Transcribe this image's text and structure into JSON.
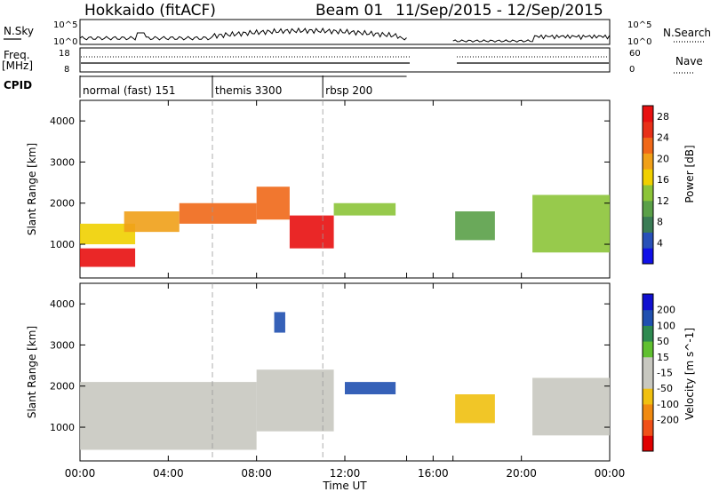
{
  "header": {
    "station": "Hokkaido (fitACF)",
    "beam": "Beam 01",
    "date_range": "11/Sep/2015 - 12/Sep/2015"
  },
  "noise_panel": {
    "left_label": "N.Sky",
    "right_label": "N.Search",
    "left_ticks": [
      "10^5",
      "10^0"
    ],
    "right_ticks": [
      "10^5",
      "10^0"
    ]
  },
  "freq_panel": {
    "left_label_1": "Freq.",
    "left_label_2": "[MHz]",
    "right_label": "Nave",
    "left_ticks": [
      "18",
      "8"
    ],
    "right_ticks": [
      "60",
      "0"
    ]
  },
  "cpid_panel": {
    "label": "CPID",
    "modes": [
      {
        "name": "normal (fast) 151",
        "start_h": 0
      },
      {
        "name": "themis 3300",
        "start_h": 6
      },
      {
        "name": "rbsp 200",
        "start_h": 11
      }
    ]
  },
  "colors": {
    "power": [
      "#1010e8",
      "#2850b8",
      "#3a7c55",
      "#5aa048",
      "#8cc438",
      "#f0d000",
      "#f0a018",
      "#f06818",
      "#e83018",
      "#e81010"
    ],
    "velocity": [
      "#e00000",
      "#f05018",
      "#f08a10",
      "#f0c010",
      "#c8c8c0",
      "#c8c8c0",
      "#60c030",
      "#2e8a50",
      "#2050b0",
      "#1010d0"
    ]
  },
  "chart_data": [
    {
      "type": "heatmap",
      "panel": "power",
      "xlabel": "",
      "ylabel": "Slant Range [km]",
      "xlim": [
        "00:00",
        "00:00"
      ],
      "ylim": [
        180,
        4500
      ],
      "y_ticks": [
        "1000",
        "2000",
        "3000",
        "4000"
      ],
      "x_ticks": [
        "00:00",
        "04:00",
        "08:00",
        "12:00",
        "16:00",
        "20:00",
        "00:00"
      ],
      "colorbar": {
        "label": "Power [dB]",
        "ticks": [
          "4",
          "8",
          "12",
          "16",
          "20",
          "24",
          "28"
        ],
        "range": [
          0,
          30
        ]
      },
      "data_gap_hours": [
        14.8,
        16.9
      ],
      "echo_regions": [
        {
          "t_start": 0.0,
          "t_end": 2.5,
          "range_km": [
            450,
            900
          ],
          "value": 27
        },
        {
          "t_start": 0.0,
          "t_end": 2.5,
          "range_km": [
            1000,
            1500
          ],
          "value": 15
        },
        {
          "t_start": 2.0,
          "t_end": 4.5,
          "range_km": [
            1300,
            1800
          ],
          "value": 19
        },
        {
          "t_start": 4.5,
          "t_end": 8.0,
          "range_km": [
            1500,
            2000
          ],
          "value": 23
        },
        {
          "t_start": 8.0,
          "t_end": 9.5,
          "range_km": [
            1600,
            2400
          ],
          "value": 21
        },
        {
          "t_start": 9.5,
          "t_end": 11.5,
          "range_km": [
            900,
            1700
          ],
          "value": 27
        },
        {
          "t_start": 11.5,
          "t_end": 14.3,
          "range_km": [
            1700,
            2000
          ],
          "value": 14
        },
        {
          "t_start": 17.0,
          "t_end": 18.8,
          "range_km": [
            1100,
            1800
          ],
          "value": 10
        },
        {
          "t_start": 20.5,
          "t_end": 24.0,
          "range_km": [
            800,
            2200
          ],
          "value": 12
        }
      ]
    },
    {
      "type": "heatmap",
      "panel": "velocity",
      "xlabel": "Time UT",
      "ylabel": "Slant Range [km]",
      "xlim": [
        "00:00",
        "00:00"
      ],
      "ylim": [
        180,
        4500
      ],
      "y_ticks": [
        "1000",
        "2000",
        "3000",
        "4000"
      ],
      "x_ticks": [
        "00:00",
        "04:00",
        "08:00",
        "12:00",
        "16:00",
        "20:00",
        "00:00"
      ],
      "colorbar": {
        "label": "Velocity [m s^-1]",
        "ticks": [
          "200",
          "100",
          "50",
          "15",
          "-15",
          "-50",
          "-100",
          "-200"
        ],
        "range": [
          -250,
          250
        ]
      },
      "data_gap_hours": [
        14.8,
        16.9
      ],
      "echo_regions": [
        {
          "t_start": 0.0,
          "t_end": 8.0,
          "range_km": [
            450,
            2100
          ],
          "value": 0
        },
        {
          "t_start": 8.0,
          "t_end": 11.5,
          "range_km": [
            900,
            2400
          ],
          "value": 30
        },
        {
          "t_start": 8.8,
          "t_end": 9.3,
          "range_km": [
            3300,
            3800
          ],
          "value": 180
        },
        {
          "t_start": 12.0,
          "t_end": 14.3,
          "range_km": [
            1800,
            2100
          ],
          "value": 180
        },
        {
          "t_start": 17.0,
          "t_end": 18.8,
          "range_km": [
            1100,
            1800
          ],
          "value": -60
        },
        {
          "t_start": 20.5,
          "t_end": 24.0,
          "range_km": [
            800,
            2200
          ],
          "value": 0
        }
      ]
    }
  ]
}
